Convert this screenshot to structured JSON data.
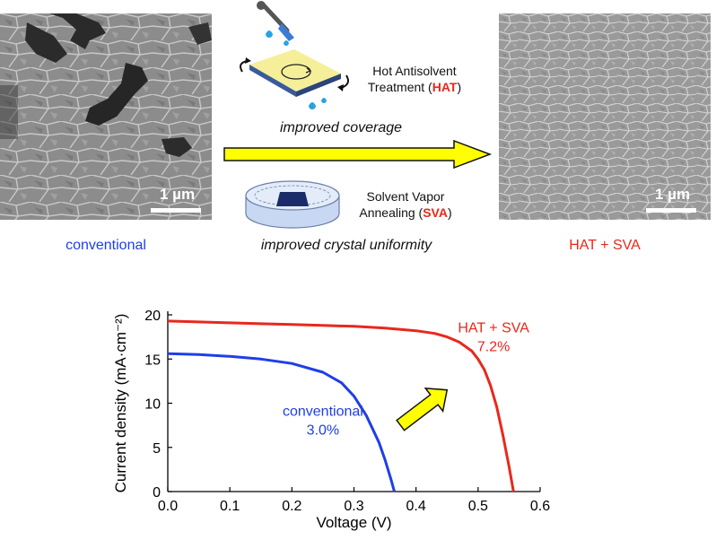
{
  "images": {
    "left_scale": "1 µm",
    "right_scale": "1 µm"
  },
  "captions": {
    "left": "conventional",
    "right": "HAT + SVA"
  },
  "steps": {
    "hat_line1": "Hot Antisolvent",
    "hat_line2_prefix": "Treatment (",
    "hat_abbrev": "HAT",
    "hat_line2_suffix": ")",
    "hat_benefit": "improved coverage",
    "sva_line1": "Solvent Vapor",
    "sva_line2_prefix": "Annealing (",
    "sva_abbrev": "SVA",
    "sva_line2_suffix": ")",
    "sva_benefit": "improved crystal uniformity"
  },
  "colors": {
    "conventional": "#1f3ee8",
    "hat_sva": "#e8281c",
    "arrow_fill": "#ffff00"
  },
  "chart_data": {
    "type": "line",
    "xlabel": "Voltage (V)",
    "ylabel": "Current density (mA·cm⁻²)",
    "xlim": [
      0.0,
      0.6
    ],
    "ylim": [
      0,
      20
    ],
    "xticks": [
      "0.0",
      "0.1",
      "0.2",
      "0.3",
      "0.4",
      "0.5",
      "0.6"
    ],
    "yticks": [
      "0",
      "5",
      "10",
      "15",
      "20"
    ],
    "series": [
      {
        "name": "conventional",
        "label_lines": [
          "conventional",
          "3.0%"
        ],
        "color": "#1f3ee8",
        "x": [
          0.0,
          0.05,
          0.1,
          0.15,
          0.2,
          0.25,
          0.28,
          0.3,
          0.32,
          0.34,
          0.35,
          0.36,
          0.365
        ],
        "y": [
          15.6,
          15.5,
          15.3,
          15.0,
          14.5,
          13.5,
          12.3,
          10.8,
          8.6,
          5.6,
          3.6,
          1.3,
          0.0
        ]
      },
      {
        "name": "HAT + SVA",
        "label_lines": [
          "HAT + SVA",
          "7.2%"
        ],
        "color": "#e8281c",
        "x": [
          0.0,
          0.05,
          0.1,
          0.15,
          0.2,
          0.25,
          0.3,
          0.35,
          0.4,
          0.43,
          0.45,
          0.47,
          0.49,
          0.5,
          0.51,
          0.52,
          0.53,
          0.54,
          0.55,
          0.557
        ],
        "y": [
          19.3,
          19.2,
          19.1,
          19.0,
          18.9,
          18.8,
          18.7,
          18.5,
          18.2,
          17.9,
          17.5,
          16.9,
          15.9,
          15.0,
          13.8,
          12.0,
          9.6,
          6.4,
          2.8,
          0.0
        ]
      }
    ]
  }
}
